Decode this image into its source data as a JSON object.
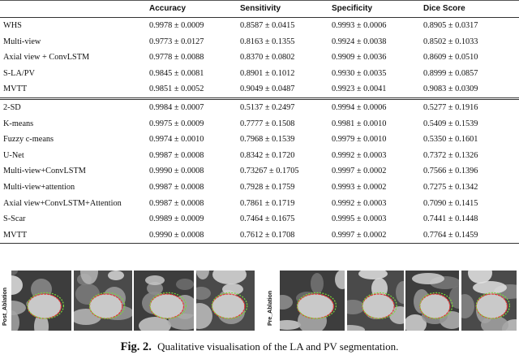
{
  "table": {
    "headers": [
      "",
      "Accuracy",
      "Sensitivity",
      "Specificity",
      "Dice Score"
    ],
    "group1": [
      [
        "WHS",
        "0.9978 ± 0.0009",
        "0.8587 ± 0.0415",
        "0.9993 ± 0.0006",
        "0.8905 ± 0.0317"
      ],
      [
        "Multi-view",
        "0.9773 ± 0.0127",
        "0.8163 ± 0.1355",
        "0.9924 ± 0.0038",
        "0.8502 ± 0.1033"
      ],
      [
        "Axial view + ConvLSTM",
        "0.9778 ± 0.0088",
        "0.8370 ± 0.0802",
        "0.9909 ± 0.0036",
        "0.8609 ± 0.0510"
      ],
      [
        "S-LA/PV",
        "0.9845 ± 0.0081",
        "0.8901 ± 0.1012",
        "0.9930 ± 0.0035",
        "0.8999 ± 0.0857"
      ],
      [
        "MVTT",
        "0.9851 ± 0.0052",
        "0.9049 ± 0.0487",
        "0.9923 ± 0.0041",
        "0.9083 ± 0.0309"
      ]
    ],
    "group2": [
      [
        "2-SD",
        "0.9984 ± 0.0007",
        "0.5137 ± 0.2497",
        "0.9994 ± 0.0006",
        "0.5277 ± 0.1916"
      ],
      [
        "K-means",
        "0.9975 ± 0.0009",
        "0.7777 ± 0.1508",
        "0.9981 ± 0.0010",
        "0.5409 ± 0.1539"
      ],
      [
        "Fuzzy c-means",
        "0.9974 ± 0.0010",
        "0.7968 ± 0.1539",
        "0.9979 ± 0.0010",
        "0.5350 ± 0.1601"
      ],
      [
        "U-Net",
        "0.9987 ± 0.0008",
        "0.8342 ± 0.1720",
        "0.9992 ± 0.0003",
        "0.7372 ± 0.1326"
      ],
      [
        "Multi-view+ConvLSTM",
        "0.9990 ± 0.0008",
        "0.73267 ± 0.1705",
        "0.9997 ± 0.0002",
        "0.7566 ± 0.1396"
      ],
      [
        "Multi-view+attention",
        "0.9987 ± 0.0008",
        "0.7928 ± 0.1759",
        "0.9993 ± 0.0002",
        "0.7275 ± 0.1342"
      ],
      [
        "Axial view+ConvLSTM+Attention",
        "0.9987 ± 0.0008",
        "0.7861 ± 0.1719",
        "0.9992 ± 0.0003",
        "0.7090 ± 0.1415"
      ],
      [
        "S-Scar",
        "0.9989 ± 0.0009",
        "0.7464 ± 0.1675",
        "0.9995 ± 0.0003",
        "0.7441 ± 0.1448"
      ],
      [
        "MVTT",
        "0.9990 ± 0.0008",
        "0.7612 ± 0.1708",
        "0.9997 ± 0.0002",
        "0.7764 ± 0.1459"
      ]
    ]
  },
  "figure": {
    "left_label": "Post_Ablation",
    "right_label": "Pre_Ablation",
    "contour_colors": {
      "label": "#e53935",
      "prediction": "#7cd63a"
    }
  },
  "caption": {
    "label": "Fig. 2.",
    "text": "Qualitative visualisation of the LA and PV segmentation."
  }
}
